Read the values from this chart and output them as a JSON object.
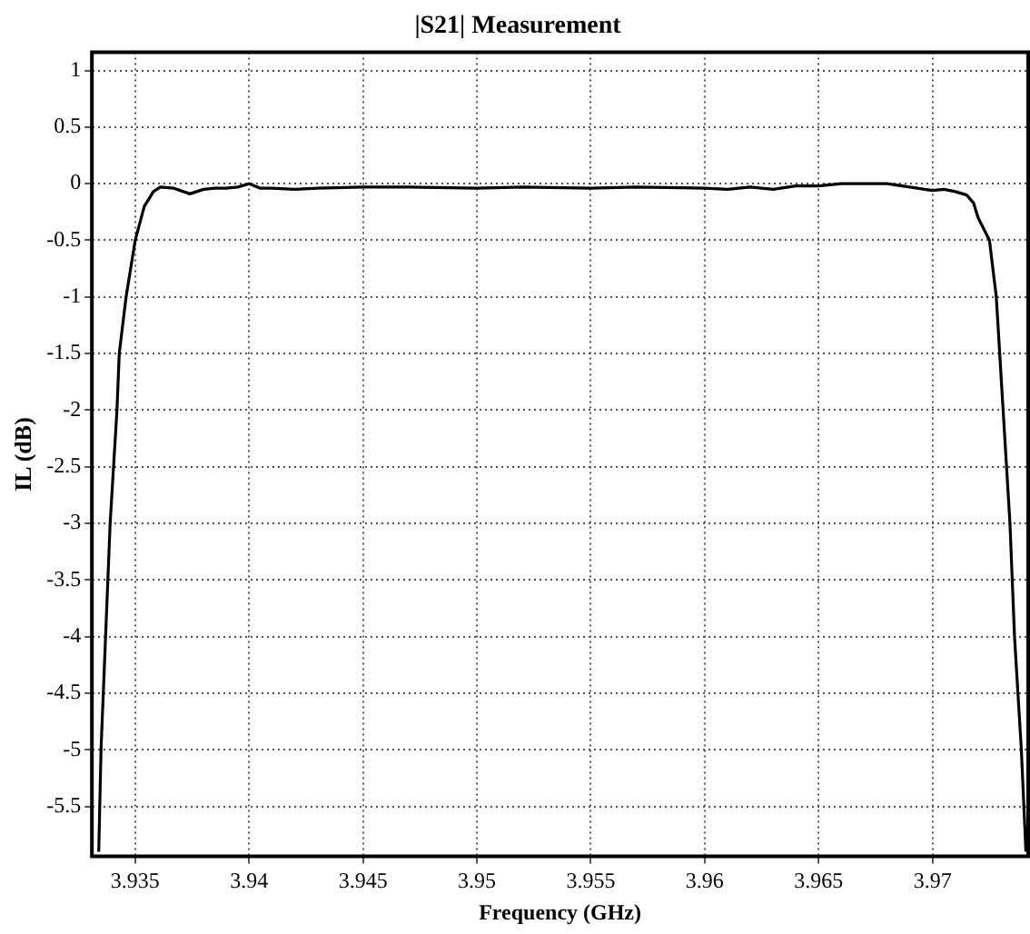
{
  "chart_data": {
    "type": "line",
    "title": "|S21| Measurement",
    "xlabel": "Frequency (GHz)",
    "ylabel": "IL (dB)",
    "xlim": [
      3.9331,
      3.9742
    ],
    "xticks": [
      3.935,
      3.94,
      3.945,
      3.95,
      3.955,
      3.96,
      3.965,
      3.97
    ],
    "ylim": [
      -5.94,
      1.16
    ],
    "yticks": [
      -5.5,
      -5,
      -4.5,
      -4,
      -3.5,
      -3,
      -2.5,
      -2,
      -1.5,
      -1,
      -0.5,
      0,
      0.5,
      1
    ],
    "grid": true,
    "legend": false,
    "marker": "none",
    "line_style": "solid",
    "series": [
      {
        "color": "#000000",
        "x": [
          3.9334,
          3.9335,
          3.9337,
          3.9339,
          3.9342,
          3.9343,
          3.9346,
          3.935,
          3.9354,
          3.9358,
          3.9361,
          3.9367,
          3.9374,
          3.938,
          3.9385,
          3.939,
          3.9395,
          3.94,
          3.9405,
          3.941,
          3.942,
          3.943,
          3.945,
          3.947,
          3.95,
          3.952,
          3.955,
          3.957,
          3.96,
          3.961,
          3.962,
          3.963,
          3.964,
          3.965,
          3.966,
          3.967,
          3.968,
          3.969,
          3.97,
          3.9705,
          3.971,
          3.9715,
          3.9718,
          3.972,
          3.9725,
          3.9728,
          3.9731,
          3.9734,
          3.9736,
          3.9739,
          3.9741
        ],
        "values": [
          -5.9,
          -5,
          -4,
          -3,
          -2,
          -1.5,
          -1,
          -0.5,
          -0.2,
          -0.07,
          -0.03,
          -0.04,
          -0.09,
          -0.05,
          -0.04,
          -0.04,
          -0.03,
          0,
          -0.04,
          -0.04,
          -0.05,
          -0.04,
          -0.03,
          -0.03,
          -0.04,
          -0.03,
          -0.04,
          -0.03,
          -0.04,
          -0.05,
          -0.03,
          -0.05,
          -0.02,
          -0.02,
          0,
          0,
          0,
          -0.03,
          -0.06,
          -0.05,
          -0.07,
          -0.1,
          -0.17,
          -0.3,
          -0.5,
          -1,
          -2,
          -3,
          -4,
          -5,
          -5.9
        ]
      }
    ]
  }
}
